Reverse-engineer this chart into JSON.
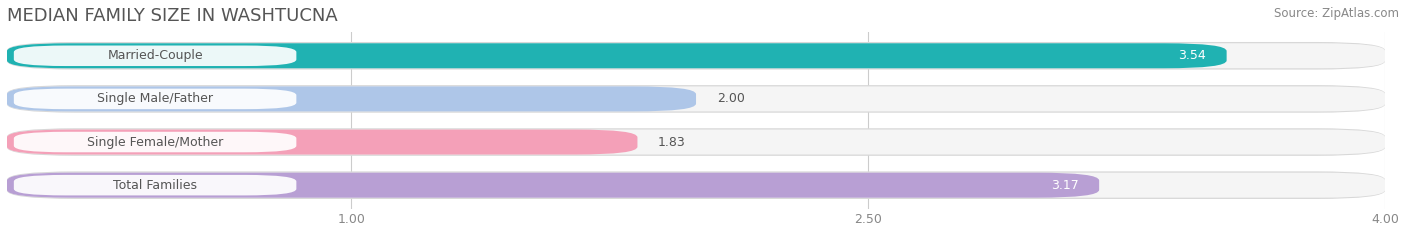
{
  "title": "MEDIAN FAMILY SIZE IN WASHTUCNA",
  "source": "Source: ZipAtlas.com",
  "categories": [
    "Married-Couple",
    "Single Male/Father",
    "Single Female/Mother",
    "Total Families"
  ],
  "values": [
    3.54,
    2.0,
    1.83,
    3.17
  ],
  "bar_colors": [
    "#20b2b2",
    "#aec6e8",
    "#f4a0b8",
    "#b89fd4"
  ],
  "bar_bg_colors": [
    "#eeeeee",
    "#eeeeee",
    "#eeeeee",
    "#eeeeee"
  ],
  "text_color": "#666666",
  "xlim": [
    0,
    4.0
  ],
  "xticks": [
    1.0,
    2.5,
    4.0
  ],
  "bar_height": 0.58,
  "figsize": [
    14.06,
    2.33
  ],
  "dpi": 100,
  "title_fontsize": 13,
  "label_fontsize": 9,
  "value_fontsize": 9,
  "tick_fontsize": 9,
  "source_fontsize": 8.5
}
